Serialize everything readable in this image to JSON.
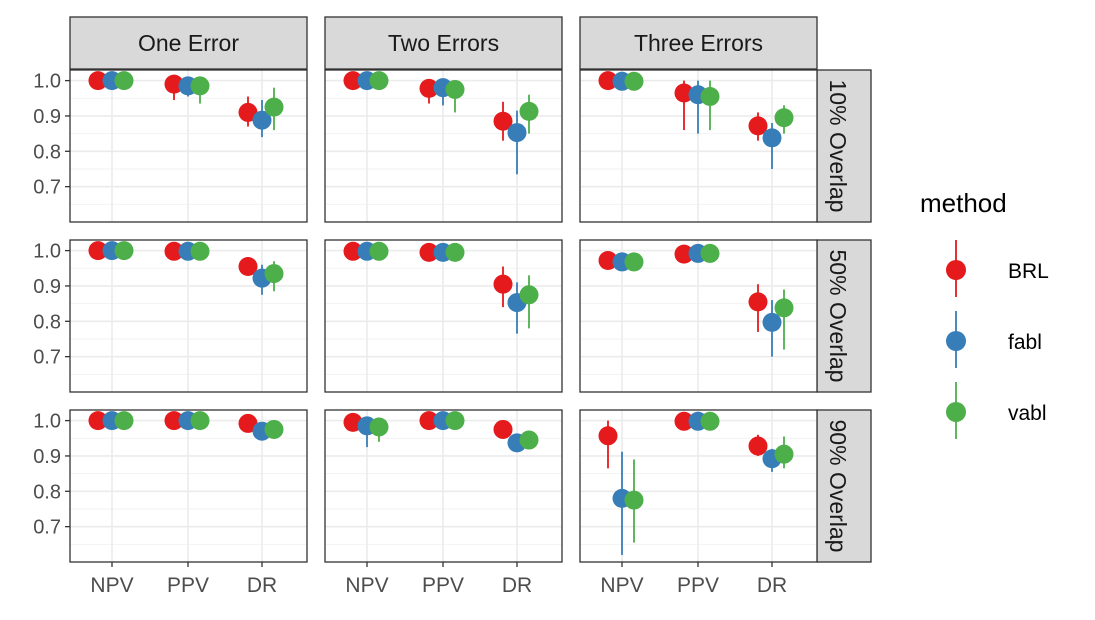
{
  "chart_data": {
    "type": "scatter",
    "subtype": "faceted point-range (dodged)",
    "colors": {
      "BRL": "#E41A1C",
      "fabl": "#377EB8",
      "vabl": "#4DAF4A"
    },
    "legend": {
      "title": "method",
      "entries": [
        "BRL",
        "fabl",
        "vabl"
      ],
      "position": "right"
    },
    "categories": [
      "NPV",
      "PPV",
      "DR"
    ],
    "methods": [
      "BRL",
      "fabl",
      "vabl"
    ],
    "ylim": [
      0.6,
      1.03
    ],
    "y_ticks": [
      "0.7",
      "0.8",
      "0.9",
      "1.0"
    ],
    "y_tick_values": [
      0.7,
      0.8,
      0.9,
      1.0
    ],
    "grid": true,
    "col_facets": [
      "One Error",
      "Two Errors",
      "Three Errors"
    ],
    "row_facets": [
      "10% Overlap",
      "50% Overlap",
      "90% Overlap"
    ],
    "panels": [
      [
        {
          "col": "One Error",
          "row": "10% Overlap",
          "series": {
            "BRL": [
              {
                "x": "NPV",
                "y": 1.0,
                "low": 0.995,
                "high": 1.0
              },
              {
                "x": "PPV",
                "y": 0.99,
                "low": 0.945,
                "high": 1.0
              },
              {
                "x": "DR",
                "y": 0.91,
                "low": 0.87,
                "high": 0.955
              }
            ],
            "fabl": [
              {
                "x": "NPV",
                "y": 1.0,
                "low": 0.995,
                "high": 1.0
              },
              {
                "x": "PPV",
                "y": 0.985,
                "low": 0.955,
                "high": 1.0
              },
              {
                "x": "DR",
                "y": 0.888,
                "low": 0.84,
                "high": 0.945
              }
            ],
            "vabl": [
              {
                "x": "NPV",
                "y": 1.0,
                "low": 0.995,
                "high": 1.0
              },
              {
                "x": "PPV",
                "y": 0.985,
                "low": 0.935,
                "high": 1.0
              },
              {
                "x": "DR",
                "y": 0.925,
                "low": 0.86,
                "high": 0.98
              }
            ]
          }
        },
        {
          "col": "Two Errors",
          "row": "10% Overlap",
          "series": {
            "BRL": [
              {
                "x": "NPV",
                "y": 1.0,
                "low": 0.995,
                "high": 1.0
              },
              {
                "x": "PPV",
                "y": 0.978,
                "low": 0.935,
                "high": 1.0
              },
              {
                "x": "DR",
                "y": 0.885,
                "low": 0.83,
                "high": 0.94
              }
            ],
            "fabl": [
              {
                "x": "NPV",
                "y": 1.0,
                "low": 0.995,
                "high": 1.0
              },
              {
                "x": "PPV",
                "y": 0.98,
                "low": 0.93,
                "high": 1.0
              },
              {
                "x": "DR",
                "y": 0.853,
                "low": 0.735,
                "high": 0.915
              }
            ],
            "vabl": [
              {
                "x": "NPV",
                "y": 1.0,
                "low": 0.995,
                "high": 1.0
              },
              {
                "x": "PPV",
                "y": 0.975,
                "low": 0.91,
                "high": 1.0
              },
              {
                "x": "DR",
                "y": 0.913,
                "low": 0.85,
                "high": 0.96
              }
            ]
          }
        },
        {
          "col": "Three Errors",
          "row": "10% Overlap",
          "series": {
            "BRL": [
              {
                "x": "NPV",
                "y": 1.0,
                "low": 0.99,
                "high": 1.0
              },
              {
                "x": "PPV",
                "y": 0.965,
                "low": 0.86,
                "high": 1.0
              },
              {
                "x": "DR",
                "y": 0.872,
                "low": 0.83,
                "high": 0.91
              }
            ],
            "fabl": [
              {
                "x": "NPV",
                "y": 0.998,
                "low": 0.99,
                "high": 1.0
              },
              {
                "x": "PPV",
                "y": 0.96,
                "low": 0.85,
                "high": 1.0
              },
              {
                "x": "DR",
                "y": 0.838,
                "low": 0.75,
                "high": 0.88
              }
            ],
            "vabl": [
              {
                "x": "NPV",
                "y": 0.998,
                "low": 0.99,
                "high": 1.0
              },
              {
                "x": "PPV",
                "y": 0.955,
                "low": 0.86,
                "high": 1.0
              },
              {
                "x": "DR",
                "y": 0.895,
                "low": 0.85,
                "high": 0.93
              }
            ]
          }
        }
      ],
      [
        {
          "col": "One Error",
          "row": "50% Overlap",
          "series": {
            "BRL": [
              {
                "x": "NPV",
                "y": 1.0,
                "low": 0.995,
                "high": 1.0
              },
              {
                "x": "PPV",
                "y": 0.998,
                "low": 0.99,
                "high": 1.0
              },
              {
                "x": "DR",
                "y": 0.955,
                "low": 0.93,
                "high": 0.975
              }
            ],
            "fabl": [
              {
                "x": "NPV",
                "y": 1.0,
                "low": 0.995,
                "high": 1.0
              },
              {
                "x": "PPV",
                "y": 0.998,
                "low": 0.99,
                "high": 1.0
              },
              {
                "x": "DR",
                "y": 0.922,
                "low": 0.875,
                "high": 0.96
              }
            ],
            "vabl": [
              {
                "x": "NPV",
                "y": 1.0,
                "low": 0.995,
                "high": 1.0
              },
              {
                "x": "PPV",
                "y": 0.998,
                "low": 0.99,
                "high": 1.0
              },
              {
                "x": "DR",
                "y": 0.935,
                "low": 0.885,
                "high": 0.97
              }
            ]
          }
        },
        {
          "col": "Two Errors",
          "row": "50% Overlap",
          "series": {
            "BRL": [
              {
                "x": "NPV",
                "y": 0.998,
                "low": 0.99,
                "high": 1.0
              },
              {
                "x": "PPV",
                "y": 0.995,
                "low": 0.985,
                "high": 1.0
              },
              {
                "x": "DR",
                "y": 0.905,
                "low": 0.84,
                "high": 0.955
              }
            ],
            "fabl": [
              {
                "x": "NPV",
                "y": 0.998,
                "low": 0.99,
                "high": 1.0
              },
              {
                "x": "PPV",
                "y": 0.995,
                "low": 0.985,
                "high": 1.0
              },
              {
                "x": "DR",
                "y": 0.853,
                "low": 0.765,
                "high": 0.91
              }
            ],
            "vabl": [
              {
                "x": "NPV",
                "y": 0.998,
                "low": 0.99,
                "high": 1.0
              },
              {
                "x": "PPV",
                "y": 0.995,
                "low": 0.985,
                "high": 1.0
              },
              {
                "x": "DR",
                "y": 0.875,
                "low": 0.78,
                "high": 0.93
              }
            ]
          }
        },
        {
          "col": "Three Errors",
          "row": "50% Overlap",
          "series": {
            "BRL": [
              {
                "x": "NPV",
                "y": 0.972,
                "low": 0.962,
                "high": 0.98
              },
              {
                "x": "PPV",
                "y": 0.99,
                "low": 0.975,
                "high": 1.0
              },
              {
                "x": "DR",
                "y": 0.855,
                "low": 0.77,
                "high": 0.905
              }
            ],
            "fabl": [
              {
                "x": "NPV",
                "y": 0.968,
                "low": 0.96,
                "high": 0.976
              },
              {
                "x": "PPV",
                "y": 0.992,
                "low": 0.98,
                "high": 1.0
              },
              {
                "x": "DR",
                "y": 0.797,
                "low": 0.7,
                "high": 0.86
              }
            ],
            "vabl": [
              {
                "x": "NPV",
                "y": 0.968,
                "low": 0.96,
                "high": 0.976
              },
              {
                "x": "PPV",
                "y": 0.992,
                "low": 0.98,
                "high": 1.0
              },
              {
                "x": "DR",
                "y": 0.838,
                "low": 0.72,
                "high": 0.89
              }
            ]
          }
        }
      ],
      [
        {
          "col": "One Error",
          "row": "90% Overlap",
          "series": {
            "BRL": [
              {
                "x": "NPV",
                "y": 1.0,
                "low": 0.99,
                "high": 1.0
              },
              {
                "x": "PPV",
                "y": 1.0,
                "low": 0.995,
                "high": 1.0
              },
              {
                "x": "DR",
                "y": 0.992,
                "low": 0.975,
                "high": 1.0
              }
            ],
            "fabl": [
              {
                "x": "NPV",
                "y": 1.0,
                "low": 0.99,
                "high": 1.0
              },
              {
                "x": "PPV",
                "y": 1.0,
                "low": 0.995,
                "high": 1.0
              },
              {
                "x": "DR",
                "y": 0.97,
                "low": 0.955,
                "high": 0.98
              }
            ],
            "vabl": [
              {
                "x": "NPV",
                "y": 1.0,
                "low": 0.99,
                "high": 1.0
              },
              {
                "x": "PPV",
                "y": 1.0,
                "low": 0.995,
                "high": 1.0
              },
              {
                "x": "DR",
                "y": 0.975,
                "low": 0.96,
                "high": 0.985
              }
            ]
          }
        },
        {
          "col": "Two Errors",
          "row": "90% Overlap",
          "series": {
            "BRL": [
              {
                "x": "NPV",
                "y": 0.995,
                "low": 0.98,
                "high": 1.0
              },
              {
                "x": "PPV",
                "y": 1.0,
                "low": 0.99,
                "high": 1.0
              },
              {
                "x": "DR",
                "y": 0.975,
                "low": 0.96,
                "high": 0.99
              }
            ],
            "fabl": [
              {
                "x": "NPV",
                "y": 0.985,
                "low": 0.925,
                "high": 1.0
              },
              {
                "x": "PPV",
                "y": 1.0,
                "low": 0.99,
                "high": 1.0
              },
              {
                "x": "DR",
                "y": 0.937,
                "low": 0.92,
                "high": 0.955
              }
            ],
            "vabl": [
              {
                "x": "NPV",
                "y": 0.982,
                "low": 0.94,
                "high": 1.0
              },
              {
                "x": "PPV",
                "y": 1.0,
                "low": 0.99,
                "high": 1.0
              },
              {
                "x": "DR",
                "y": 0.945,
                "low": 0.925,
                "high": 0.965
              }
            ]
          }
        },
        {
          "col": "Three Errors",
          "row": "90% Overlap",
          "series": {
            "BRL": [
              {
                "x": "NPV",
                "y": 0.957,
                "low": 0.865,
                "high": 1.0
              },
              {
                "x": "PPV",
                "y": 0.998,
                "low": 0.99,
                "high": 1.0
              },
              {
                "x": "DR",
                "y": 0.928,
                "low": 0.9,
                "high": 0.96
              }
            ],
            "fabl": [
              {
                "x": "NPV",
                "y": 0.78,
                "low": 0.62,
                "high": 0.912
              },
              {
                "x": "PPV",
                "y": 0.998,
                "low": 0.99,
                "high": 1.0
              },
              {
                "x": "DR",
                "y": 0.892,
                "low": 0.855,
                "high": 0.92
              }
            ],
            "vabl": [
              {
                "x": "NPV",
                "y": 0.775,
                "low": 0.655,
                "high": 0.89
              },
              {
                "x": "PPV",
                "y": 0.998,
                "low": 0.99,
                "high": 1.0
              },
              {
                "x": "DR",
                "y": 0.905,
                "low": 0.865,
                "high": 0.955
              }
            ]
          }
        }
      ]
    ]
  }
}
